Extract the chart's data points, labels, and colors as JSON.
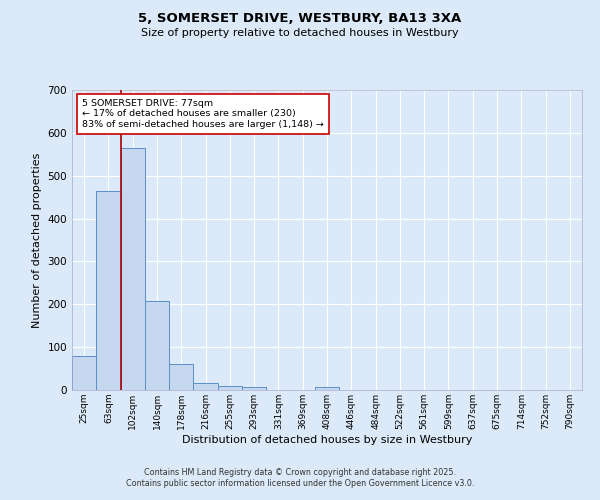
{
  "title1": "5, SOMERSET DRIVE, WESTBURY, BA13 3XA",
  "title2": "Size of property relative to detached houses in Westbury",
  "xlabel": "Distribution of detached houses by size in Westbury",
  "ylabel": "Number of detached properties",
  "categories": [
    "25sqm",
    "63sqm",
    "102sqm",
    "140sqm",
    "178sqm",
    "216sqm",
    "255sqm",
    "293sqm",
    "331sqm",
    "369sqm",
    "408sqm",
    "446sqm",
    "484sqm",
    "522sqm",
    "561sqm",
    "599sqm",
    "637sqm",
    "675sqm",
    "714sqm",
    "752sqm",
    "790sqm"
  ],
  "values": [
    80,
    465,
    565,
    208,
    60,
    17,
    10,
    7,
    0,
    0,
    7,
    0,
    0,
    0,
    0,
    0,
    0,
    0,
    0,
    0,
    0
  ],
  "bar_color": "#c5d8f0",
  "bar_edge_color": "#5b8fc9",
  "bg_color": "#dce9f8",
  "grid_color": "#ffffff",
  "vline_x": 1.5,
  "vline_color": "#aa0000",
  "annotation_text": "5 SOMERSET DRIVE: 77sqm\n← 17% of detached houses are smaller (230)\n83% of semi-detached houses are larger (1,148) →",
  "annotation_box_facecolor": "#ffffff",
  "annotation_box_edge": "#cc0000",
  "footer1": "Contains HM Land Registry data © Crown copyright and database right 2025.",
  "footer2": "Contains public sector information licensed under the Open Government Licence v3.0.",
  "ylim": [
    0,
    700
  ],
  "yticks": [
    0,
    100,
    200,
    300,
    400,
    500,
    600,
    700
  ]
}
